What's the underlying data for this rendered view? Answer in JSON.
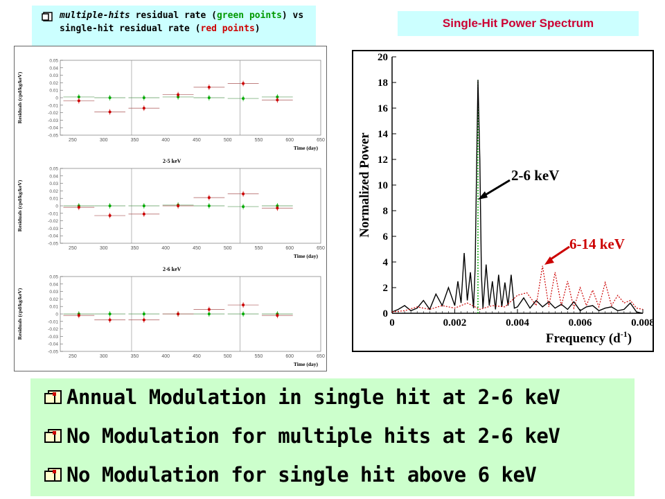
{
  "caption": {
    "part1": "multiple-hits",
    "part2": " residual rate (",
    "part3": "green points",
    "part4": ") vs single-hit residual rate (",
    "part5": "red points",
    "part6": ")"
  },
  "spectrum_title": "Single-Hit Power Spectrum",
  "bullets": [
    "Annual Modulation in single hit at 2-6 keV",
    "No Modulation for multiple hits at 2-6 keV",
    "No Modulation for single hit above 6 keV"
  ],
  "colors": {
    "red": "#cc0000",
    "green": "#00aa00",
    "caption_bg": "#ccffff",
    "bullet_bg": "#ccffcc"
  },
  "chart_data": [
    {
      "type": "scatter",
      "title": "",
      "xlabel": "Time (day)",
      "ylabel": "Residuals (cpd/kg/keV)",
      "xlim": [
        230,
        650
      ],
      "ylim": [
        -0.05,
        0.05
      ],
      "xticks": [
        250,
        300,
        350,
        400,
        450,
        500,
        550,
        600,
        650
      ],
      "yticks": [
        0.05,
        0.04,
        0.03,
        0.02,
        0.01,
        0,
        -0.01,
        -0.02,
        -0.03,
        -0.04,
        -0.05
      ],
      "series": [
        {
          "name": "green points",
          "color": "#00aa00",
          "x": [
            260,
            310,
            365,
            420,
            470,
            525,
            580
          ],
          "y": [
            0.001,
            0.0,
            0.0,
            0.001,
            0.0,
            -0.001,
            0.001
          ],
          "xerr": 25
        },
        {
          "name": "red points",
          "color": "#cc0000",
          "x": [
            260,
            310,
            365,
            420,
            470,
            525,
            580
          ],
          "y": [
            -0.004,
            -0.019,
            -0.014,
            0.004,
            0.014,
            0.019,
            -0.003
          ],
          "xerr": 25
        }
      ]
    },
    {
      "type": "scatter",
      "title": "2-5 keV",
      "xlabel": "Time (day)",
      "ylabel": "Residuals (cpd/kg/keV)",
      "xlim": [
        230,
        650
      ],
      "ylim": [
        -0.05,
        0.05
      ],
      "xticks": [
        250,
        300,
        350,
        400,
        450,
        500,
        550,
        600,
        650
      ],
      "yticks": [
        0.05,
        0.04,
        0.03,
        0.02,
        0.01,
        0,
        -0.01,
        -0.02,
        -0.03,
        -0.04,
        -0.05
      ],
      "series": [
        {
          "name": "green points",
          "color": "#00aa00",
          "x": [
            260,
            310,
            365,
            420,
            470,
            525,
            580
          ],
          "y": [
            0.0,
            0.0,
            0.0,
            0.001,
            0.0,
            -0.001,
            0.0
          ],
          "xerr": 25
        },
        {
          "name": "red points",
          "color": "#cc0000",
          "x": [
            260,
            310,
            365,
            420,
            470,
            525,
            580
          ],
          "y": [
            -0.002,
            -0.013,
            -0.011,
            0.0,
            0.011,
            0.016,
            -0.003
          ],
          "xerr": 25
        }
      ]
    },
    {
      "type": "scatter",
      "title": "2-6 keV",
      "xlabel": "Time (day)",
      "ylabel": "Residuals (cpd/kg/keV)",
      "xlim": [
        230,
        650
      ],
      "ylim": [
        -0.05,
        0.05
      ],
      "xticks": [
        250,
        300,
        350,
        400,
        450,
        500,
        550,
        600,
        650
      ],
      "yticks": [
        0.05,
        0.04,
        0.03,
        0.02,
        0.01,
        0,
        -0.01,
        -0.02,
        -0.03,
        -0.04,
        -0.05
      ],
      "series": [
        {
          "name": "green points",
          "color": "#00aa00",
          "x": [
            260,
            310,
            365,
            420,
            470,
            525,
            580
          ],
          "y": [
            0.0,
            0.0,
            0.0,
            0.0,
            0.0,
            0.0,
            0.0
          ],
          "xerr": 25
        },
        {
          "name": "red points",
          "color": "#cc0000",
          "x": [
            260,
            310,
            365,
            420,
            470,
            525,
            580
          ],
          "y": [
            -0.002,
            -0.008,
            -0.008,
            0.0,
            0.006,
            0.012,
            -0.002
          ],
          "xerr": 25
        }
      ]
    },
    {
      "type": "line",
      "title": "",
      "xlabel": "Frequency (d",
      "xlabel_sup": "-1",
      "xlabel_end": ")",
      "ylabel": "Normalized Power",
      "xlim": [
        0,
        0.008
      ],
      "ylim": [
        0,
        20
      ],
      "xticks": [
        0,
        0.002,
        0.004,
        0.006,
        0.008
      ],
      "yticks": [
        0,
        2,
        4,
        6,
        8,
        10,
        12,
        14,
        16,
        18,
        20
      ],
      "annotations": [
        {
          "text": "2-6 keV",
          "color": "#000000"
        },
        {
          "text": "6-14 keV",
          "color": "#cc0000"
        }
      ],
      "vline_x": 0.00274,
      "series": [
        {
          "name": "2-6 keV",
          "color": "#000000",
          "x": [
            0.0,
            0.0002,
            0.0004,
            0.0006,
            0.0008,
            0.001,
            0.0012,
            0.0014,
            0.0016,
            0.0018,
            0.002,
            0.0021,
            0.0022,
            0.0023,
            0.0024,
            0.0025,
            0.0026,
            0.00265,
            0.0027,
            0.00274,
            0.0028,
            0.00285,
            0.0029,
            0.003,
            0.0031,
            0.0032,
            0.0033,
            0.0034,
            0.0035,
            0.0036,
            0.0037,
            0.0038,
            0.0039,
            0.004,
            0.0042,
            0.0044,
            0.0046,
            0.0048,
            0.005,
            0.0052,
            0.0054,
            0.0056,
            0.0058,
            0.006,
            0.0062,
            0.0064,
            0.0066,
            0.0068,
            0.007,
            0.0072,
            0.0074,
            0.0076,
            0.0078,
            0.008
          ],
          "y": [
            0.1,
            0.3,
            0.6,
            0.2,
            0.4,
            1.0,
            0.3,
            1.5,
            0.6,
            2.0,
            0.6,
            2.5,
            0.8,
            4.7,
            1.0,
            3.2,
            0.4,
            3.5,
            12.0,
            18.2,
            12.0,
            3.0,
            0.4,
            3.8,
            0.6,
            2.5,
            0.3,
            3.0,
            0.5,
            2.4,
            0.6,
            3.0,
            0.4,
            0.5,
            1.2,
            0.4,
            1.0,
            0.5,
            0.9,
            0.4,
            0.7,
            0.3,
            0.9,
            0.2,
            0.5,
            0.6,
            0.2,
            0.4,
            0.5,
            0.2,
            0.3,
            0.8,
            0.1,
            0.0
          ]
        },
        {
          "name": "6-14 keV",
          "color": "#cc0000",
          "x": [
            0.0,
            0.0004,
            0.0008,
            0.0012,
            0.0016,
            0.002,
            0.0024,
            0.0028,
            0.0032,
            0.0036,
            0.004,
            0.0043,
            0.0046,
            0.0048,
            0.005,
            0.0052,
            0.0054,
            0.0056,
            0.0058,
            0.006,
            0.0062,
            0.0064,
            0.0066,
            0.0068,
            0.007,
            0.0072,
            0.0074,
            0.0076,
            0.0078,
            0.008
          ],
          "y": [
            0.1,
            0.2,
            0.5,
            0.3,
            0.6,
            0.4,
            0.8,
            0.3,
            0.6,
            0.5,
            1.4,
            1.6,
            0.6,
            3.7,
            0.5,
            3.2,
            0.6,
            2.5,
            0.4,
            2.0,
            0.6,
            1.8,
            0.5,
            2.4,
            0.6,
            1.4,
            0.8,
            1.0,
            0.4,
            0.3
          ]
        }
      ]
    }
  ]
}
